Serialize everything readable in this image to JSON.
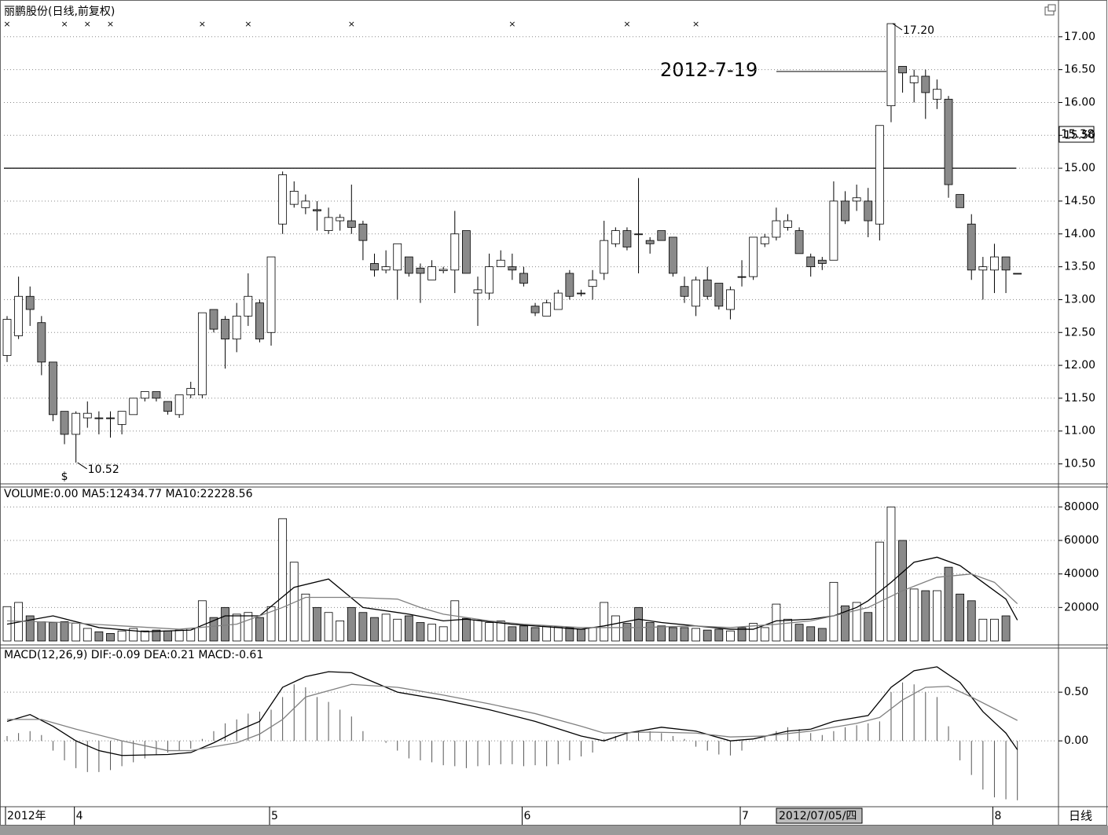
{
  "chart_data": [
    {
      "type": "candlestick",
      "title": "丽鹏股份(日线,前复权)",
      "up_color": "#ffffff",
      "down_color": "#8a8a8a",
      "line_color": "#000000",
      "open": [
        12.15,
        12.45,
        13.05,
        12.65,
        12.05,
        11.3,
        10.95,
        11.2,
        11.2,
        11.2,
        11.1,
        11.25,
        11.5,
        11.6,
        11.45,
        11.25,
        11.55,
        11.55,
        12.85,
        12.7,
        12.4,
        12.75,
        12.95,
        12.5,
        14.15,
        14.45,
        14.4,
        14.37,
        14.05,
        14.2,
        14.2,
        14.15,
        13.55,
        13.45,
        13.45,
        13.65,
        13.48,
        13.3,
        13.44,
        13.45,
        14.05,
        13.1,
        13.1,
        13.5,
        13.5,
        13.4,
        12.9,
        12.75,
        12.85,
        13.4,
        13.1,
        13.2,
        13.4,
        13.85,
        14.05,
        14.0,
        13.9,
        14.05,
        13.95,
        13.2,
        12.9,
        13.3,
        13.25,
        12.85,
        13.35,
        13.35,
        13.85,
        13.95,
        14.1,
        14.05,
        13.65,
        13.6,
        13.6,
        14.5,
        14.5,
        14.5,
        14.15,
        15.95,
        16.55,
        16.3,
        16.4,
        16.05,
        16.05,
        14.6,
        14.15,
        13.45,
        13.45,
        13.65,
        13.4
      ],
      "high": [
        12.75,
        13.35,
        13.2,
        12.75,
        12.05,
        11.3,
        11.3,
        11.45,
        11.3,
        11.3,
        11.3,
        11.5,
        11.6,
        11.6,
        11.45,
        11.55,
        11.75,
        12.8,
        12.85,
        12.75,
        12.95,
        13.4,
        13.0,
        13.65,
        14.95,
        14.8,
        14.6,
        14.5,
        14.4,
        14.3,
        14.75,
        14.2,
        13.7,
        13.75,
        13.85,
        13.65,
        13.55,
        13.6,
        13.5,
        14.35,
        14.05,
        13.35,
        13.7,
        13.75,
        13.7,
        13.5,
        12.95,
        13.0,
        13.15,
        13.45,
        13.15,
        13.45,
        14.2,
        14.1,
        14.1,
        14.85,
        13.95,
        14.05,
        13.95,
        13.35,
        13.35,
        13.5,
        13.25,
        13.2,
        13.6,
        13.95,
        14.0,
        14.4,
        14.3,
        14.1,
        13.7,
        13.65,
        14.8,
        14.65,
        14.75,
        14.7,
        15.65,
        17.2,
        16.55,
        16.5,
        16.5,
        16.35,
        16.1,
        14.6,
        14.3,
        13.65,
        13.85,
        13.65,
        13.4
      ],
      "low": [
        12.05,
        12.4,
        12.6,
        11.85,
        11.15,
        10.8,
        10.52,
        11.05,
        10.95,
        10.9,
        10.95,
        11.25,
        11.45,
        11.45,
        11.25,
        11.2,
        11.5,
        11.5,
        12.5,
        11.95,
        12.2,
        12.6,
        12.35,
        12.3,
        14.0,
        14.4,
        14.3,
        14.05,
        14.0,
        14.05,
        14.0,
        13.6,
        13.35,
        13.4,
        13.0,
        13.35,
        12.95,
        13.3,
        13.4,
        13.1,
        13.4,
        12.6,
        13.0,
        13.5,
        13.3,
        13.2,
        12.75,
        12.75,
        12.85,
        13.0,
        13.05,
        13.0,
        13.3,
        13.8,
        13.75,
        13.4,
        13.7,
        13.9,
        13.35,
        12.95,
        12.75,
        13.0,
        12.85,
        12.7,
        13.2,
        13.3,
        13.8,
        13.9,
        14.05,
        13.7,
        13.35,
        13.45,
        13.6,
        14.15,
        14.35,
        13.95,
        13.9,
        15.7,
        16.15,
        16.0,
        15.75,
        15.9,
        14.55,
        14.4,
        13.3,
        13.0,
        13.1,
        13.1,
        13.4
      ],
      "close": [
        12.7,
        13.05,
        12.85,
        12.05,
        11.25,
        10.95,
        11.27,
        11.27,
        11.2,
        11.2,
        11.3,
        11.5,
        11.6,
        11.5,
        11.3,
        11.55,
        11.65,
        12.8,
        12.55,
        12.4,
        12.75,
        13.05,
        12.4,
        13.65,
        14.9,
        14.65,
        14.5,
        14.35,
        14.25,
        14.25,
        14.1,
        13.9,
        13.45,
        13.5,
        13.85,
        13.4,
        13.4,
        13.5,
        13.46,
        14.0,
        13.4,
        13.15,
        13.5,
        13.6,
        13.45,
        13.25,
        12.8,
        12.95,
        13.1,
        13.05,
        13.1,
        13.3,
        13.9,
        14.05,
        13.8,
        14.0,
        13.85,
        13.9,
        13.4,
        13.05,
        13.3,
        13.05,
        12.9,
        13.15,
        13.35,
        13.95,
        13.95,
        14.2,
        14.2,
        13.7,
        13.5,
        13.55,
        14.5,
        14.2,
        14.55,
        14.2,
        15.65,
        17.2,
        16.45,
        16.4,
        16.15,
        16.2,
        14.75,
        14.4,
        13.45,
        13.5,
        13.65,
        13.45,
        13.4
      ],
      "categories": [
        "2012年",
        null,
        null,
        null,
        null,
        null,
        "4",
        null,
        null,
        null,
        null,
        null,
        null,
        null,
        null,
        null,
        null,
        null,
        null,
        null,
        null,
        null,
        null,
        "5",
        null,
        null,
        null,
        null,
        null,
        null,
        null,
        null,
        null,
        null,
        null,
        null,
        null,
        null,
        null,
        null,
        null,
        null,
        null,
        null,
        null,
        "6",
        null,
        null,
        null,
        null,
        null,
        null,
        null,
        null,
        null,
        null,
        null,
        null,
        null,
        null,
        null,
        null,
        null,
        null,
        "7",
        null,
        null,
        null,
        null,
        null,
        null,
        null,
        null,
        null,
        null,
        null,
        null,
        null,
        null,
        null,
        null,
        null,
        null,
        null,
        null,
        null,
        "8",
        null,
        null
      ],
      "ylim": [
        10.22,
        17.44
      ],
      "yticks": [
        {
          "value": 10.5,
          "label": "10.50"
        },
        {
          "value": 11,
          "label": "11.00"
        },
        {
          "value": 11.5,
          "label": "11.50"
        },
        {
          "value": 12,
          "label": "12.00"
        },
        {
          "value": 12.5,
          "label": "12.50"
        },
        {
          "value": 13,
          "label": "13.00"
        },
        {
          "value": 13.5,
          "label": "13.50"
        },
        {
          "value": 14,
          "label": "14.00"
        },
        {
          "value": 14.5,
          "label": "14.50"
        },
        {
          "value": 15,
          "label": "15.00"
        },
        {
          "value": 15.5,
          "label": "15.50"
        },
        {
          "value": 16,
          "label": "16.00"
        },
        {
          "value": 16.5,
          "label": "16.50"
        },
        {
          "value": 17,
          "label": "17.00"
        }
      ],
      "grid": true,
      "reference_line": 15,
      "annotations": [
        {
          "index": 77,
          "value": 17.2,
          "label": "17.20"
        },
        {
          "index": 6,
          "value": 10.52,
          "label": "10.52"
        }
      ],
      "date_note": "2012-7-19",
      "price_box": "15.38",
      "cursor_date": "2012/07/05/四",
      "period_label": "日线",
      "markers": {
        "label": "×",
        "indices": [
          0,
          5,
          7,
          9,
          17,
          21,
          30,
          44,
          54,
          60
        ]
      },
      "dividend_marker": {
        "label": "$",
        "index": 5
      }
    },
    {
      "type": "bar",
      "title": "VOLUME:0.00  MA5:12434.77  MA10:22228.56",
      "values": [
        20500,
        23000,
        15000,
        11500,
        11000,
        11500,
        10500,
        7500,
        5500,
        4500,
        6000,
        7500,
        6000,
        6500,
        6000,
        6500,
        7500,
        24000,
        14000,
        20000,
        16000,
        17000,
        14000,
        20500,
        73000,
        47000,
        28000,
        20000,
        17000,
        12000,
        20000,
        17000,
        14000,
        16000,
        13000,
        15000,
        11000,
        10000,
        8500,
        24000,
        13500,
        12500,
        11000,
        12000,
        8500,
        9000,
        8000,
        9000,
        8500,
        8000,
        7000,
        8000,
        23000,
        15000,
        10500,
        20000,
        11000,
        9000,
        8000,
        8000,
        7500,
        6500,
        7000,
        6000,
        8000,
        10500,
        8000,
        22000,
        13000,
        10000,
        8500,
        7500,
        35000,
        21000,
        23000,
        17000,
        59000,
        80000,
        60000,
        31000,
        30000,
        30000,
        44000,
        28000,
        24000,
        13000,
        13000,
        15000,
        0
      ],
      "ylim": [
        0,
        90000
      ],
      "yticks": [
        20000,
        40000,
        60000,
        80000
      ],
      "series": [
        {
          "name": "MA5",
          "color": "#000000",
          "x": [
            0,
            4,
            8,
            12,
            16,
            19,
            22,
            25,
            28,
            31,
            35,
            38,
            40,
            44,
            48,
            50,
            52,
            55,
            57,
            60,
            63,
            65,
            67,
            70,
            72,
            74,
            75,
            77,
            79,
            81,
            83,
            85,
            87,
            88
          ],
          "values": [
            10000,
            15000,
            8000,
            5500,
            6500,
            15000,
            15000,
            32000,
            37000,
            20000,
            16000,
            12000,
            13000,
            10000,
            8000,
            7000,
            9000,
            13000,
            11000,
            9000,
            7000,
            7000,
            12000,
            13000,
            15000,
            20000,
            24000,
            35000,
            47000,
            50000,
            45000,
            35000,
            25000,
            12434.77
          ]
        },
        {
          "name": "MA10",
          "color": "#808080",
          "x": [
            0,
            5,
            10,
            15,
            20,
            24,
            26,
            30,
            34,
            36,
            38,
            42,
            45,
            50,
            55,
            60,
            63,
            67,
            70,
            72,
            75,
            78,
            81,
            84,
            86,
            88
          ],
          "values": [
            12000,
            11000,
            9000,
            7000,
            10000,
            20000,
            26000,
            26000,
            25000,
            20000,
            16000,
            12000,
            10000,
            8000,
            8000,
            9000,
            8000,
            10000,
            12000,
            15000,
            20000,
            30000,
            38000,
            40000,
            35000,
            22228.56
          ]
        }
      ]
    },
    {
      "type": "stem",
      "title": "MACD(12,26,9)  DIF:-0.09  DEA:0.21  MACD:-0.61",
      "color": "#555555",
      "values": [
        0.05,
        0.08,
        0.1,
        0.06,
        -0.1,
        -0.2,
        -0.28,
        -0.32,
        -0.32,
        -0.3,
        -0.26,
        -0.22,
        -0.18,
        -0.14,
        -0.12,
        -0.1,
        -0.08,
        0.02,
        0.1,
        0.18,
        0.22,
        0.28,
        0.3,
        0.32,
        0.45,
        0.58,
        0.55,
        0.45,
        0.4,
        0.32,
        0.25,
        0.1,
        0.0,
        -0.02,
        -0.1,
        -0.18,
        -0.2,
        -0.22,
        -0.25,
        -0.26,
        -0.28,
        -0.26,
        -0.25,
        -0.24,
        -0.24,
        -0.26,
        -0.25,
        -0.26,
        -0.24,
        -0.2,
        -0.16,
        -0.12,
        0.02,
        0.05,
        0.08,
        0.1,
        0.1,
        0.08,
        0.05,
        0.02,
        -0.06,
        -0.1,
        -0.14,
        -0.15,
        -0.1,
        0.0,
        0.04,
        0.1,
        0.14,
        0.12,
        0.08,
        0.06,
        0.1,
        0.14,
        0.16,
        0.18,
        0.2,
        0.5,
        0.6,
        0.58,
        0.5,
        0.45,
        0.15,
        -0.2,
        -0.35,
        -0.5,
        -0.58,
        -0.6,
        -0.61
      ],
      "ylim": [
        -0.66,
        0.94
      ],
      "yticks": [
        {
          "value": 0,
          "label": "0.00"
        },
        {
          "value": 0.5,
          "label": "0.50"
        }
      ],
      "series": [
        {
          "name": "DIF",
          "color": "#000000",
          "x": [
            0,
            2,
            4,
            6,
            8,
            10,
            14,
            16,
            18,
            20,
            22,
            24,
            26,
            28,
            30,
            32,
            34,
            38,
            42,
            46,
            50,
            52,
            54,
            57,
            60,
            63,
            65,
            68,
            70,
            72,
            74,
            75,
            77,
            79,
            81,
            83,
            85,
            87,
            88
          ],
          "values": [
            0.2,
            0.27,
            0.15,
            0.0,
            -0.1,
            -0.15,
            -0.14,
            -0.12,
            -0.02,
            0.1,
            0.2,
            0.55,
            0.66,
            0.71,
            0.7,
            0.6,
            0.5,
            0.42,
            0.32,
            0.2,
            0.05,
            0.0,
            0.08,
            0.14,
            0.1,
            0.0,
            0.02,
            0.1,
            0.12,
            0.2,
            0.24,
            0.26,
            0.55,
            0.72,
            0.76,
            0.6,
            0.3,
            0.08,
            -0.09
          ]
        },
        {
          "name": "DEA",
          "color": "#808080",
          "x": [
            0,
            3,
            6,
            10,
            14,
            16,
            20,
            22,
            24,
            26,
            30,
            34,
            38,
            42,
            46,
            50,
            52,
            56,
            60,
            63,
            66,
            70,
            74,
            76,
            78,
            80,
            82,
            84,
            86,
            88
          ],
          "values": [
            0.22,
            0.22,
            0.12,
            0.0,
            -0.1,
            -0.1,
            -0.02,
            0.07,
            0.22,
            0.45,
            0.58,
            0.55,
            0.47,
            0.38,
            0.28,
            0.15,
            0.08,
            0.09,
            0.08,
            0.04,
            0.05,
            0.1,
            0.18,
            0.24,
            0.42,
            0.55,
            0.56,
            0.45,
            0.33,
            0.21
          ]
        }
      ]
    }
  ]
}
